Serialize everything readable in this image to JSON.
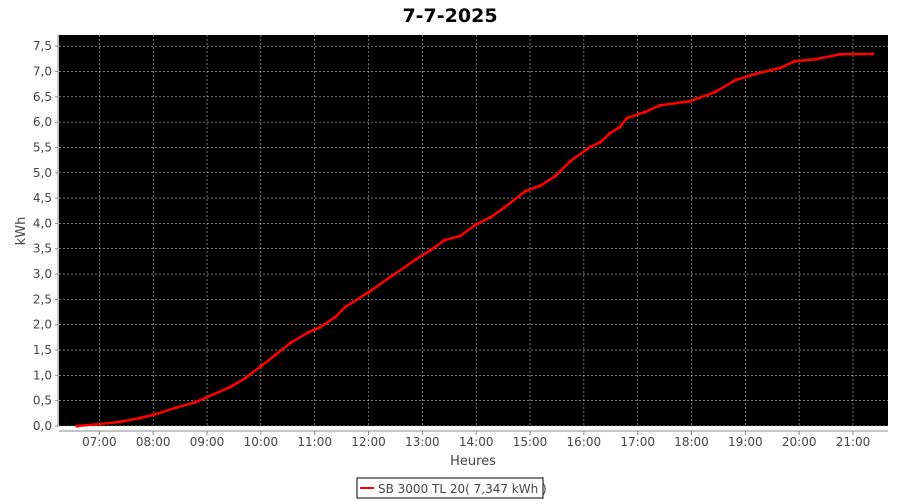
{
  "chart_data": {
    "type": "line",
    "title": "7-7-2025",
    "xlabel": "Heures",
    "ylabel": "kWh",
    "xlim": [
      "06:15",
      "21:39"
    ],
    "ylim": [
      0,
      7.72
    ],
    "grid": true,
    "background": "#000000",
    "grid_color": "#c0c0c0",
    "legend_position": "bottom",
    "x_ticks": [
      "07:00",
      "08:00",
      "09:00",
      "10:00",
      "11:00",
      "12:00",
      "13:00",
      "14:00",
      "15:00",
      "16:00",
      "17:00",
      "18:00",
      "19:00",
      "20:00",
      "21:00"
    ],
    "y_ticks": [
      "0,0",
      "0,5",
      "1,0",
      "1,5",
      "2,0",
      "2,5",
      "3,0",
      "3,5",
      "4,0",
      "4,5",
      "5,0",
      "5,5",
      "6,0",
      "6,5",
      "7,0",
      "7,5"
    ],
    "series": [
      {
        "name": "SB 3000 TL 20( 7,347 kWh )",
        "color": "#ff0000",
        "x": [
          "06:35",
          "07:01",
          "07:23",
          "07:46",
          "08:00",
          "08:25",
          "08:47",
          "09:00",
          "09:26",
          "09:43",
          "10:00",
          "10:16",
          "10:33",
          "10:52",
          "11:06",
          "11:23",
          "11:34",
          "12:00",
          "12:24",
          "12:52",
          "13:09",
          "13:25",
          "13:42",
          "13:59",
          "14:16",
          "14:32",
          "14:55",
          "15:11",
          "15:28",
          "15:45",
          "16:07",
          "16:18",
          "16:29",
          "16:40",
          "16:48",
          "17:08",
          "17:25",
          "17:58",
          "18:26",
          "18:49",
          "19:11",
          "19:39",
          "19:55",
          "20:18",
          "20:46",
          "21:22"
        ],
        "y": [
          0,
          0.04,
          0.08,
          0.16,
          0.22,
          0.36,
          0.47,
          0.57,
          0.77,
          0.95,
          1.18,
          1.4,
          1.64,
          1.84,
          1.95,
          2.15,
          2.35,
          2.64,
          2.94,
          3.28,
          3.47,
          3.67,
          3.75,
          3.97,
          4.12,
          4.32,
          4.64,
          4.74,
          4.93,
          5.23,
          5.51,
          5.6,
          5.78,
          5.9,
          6.08,
          6.2,
          6.33,
          6.41,
          6.59,
          6.83,
          6.95,
          7.07,
          7.2,
          7.24,
          7.34,
          7.347
        ]
      }
    ]
  }
}
